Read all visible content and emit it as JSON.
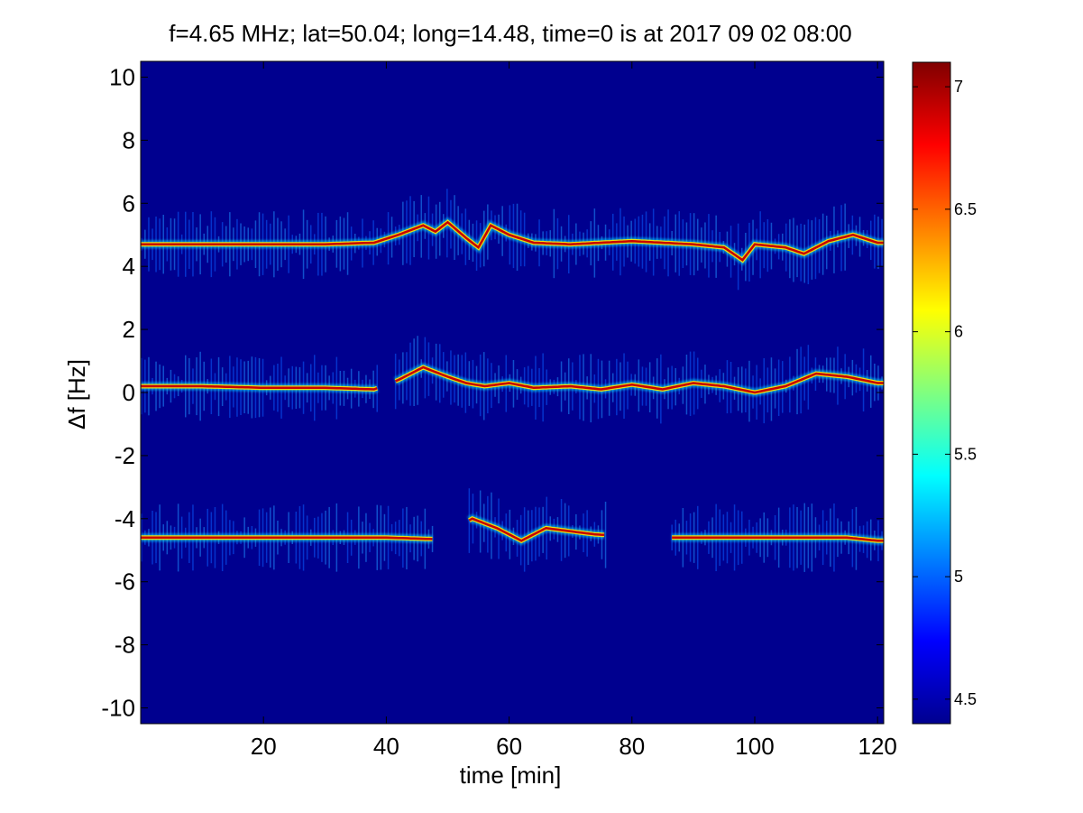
{
  "chart_data": {
    "type": "heatmap",
    "title": "f=4.65 MHz;  lat=50.04; long=14.48, time=0 is at 2017 09 02 08:00",
    "xlabel": "time [min]",
    "ylabel": "Δf [Hz]",
    "xlim": [
      0,
      121
    ],
    "ylim": [
      -10.5,
      10.5
    ],
    "x_ticks": [
      20,
      40,
      60,
      80,
      100,
      120
    ],
    "y_ticks": [
      10,
      8,
      6,
      4,
      2,
      0,
      -2,
      -4,
      -6,
      -8,
      -10
    ],
    "colorbar": {
      "range": [
        4.4,
        7.1
      ],
      "ticks": [
        7,
        6.5,
        6,
        5.5,
        5,
        4.5
      ],
      "colormap": "jet"
    },
    "background_value": 4.4,
    "traces": [
      {
        "name": "upper echo (~+4.7 Hz)",
        "points": [
          [
            0,
            4.7
          ],
          [
            10,
            4.7
          ],
          [
            20,
            4.7
          ],
          [
            30,
            4.7
          ],
          [
            38,
            4.75
          ],
          [
            42,
            5.0
          ],
          [
            46,
            5.3
          ],
          [
            48,
            5.1
          ],
          [
            50,
            5.4
          ],
          [
            53,
            4.9
          ],
          [
            55,
            4.6
          ],
          [
            57,
            5.3
          ],
          [
            60,
            5.0
          ],
          [
            64,
            4.75
          ],
          [
            70,
            4.7
          ],
          [
            80,
            4.8
          ],
          [
            90,
            4.7
          ],
          [
            95,
            4.6
          ],
          [
            98,
            4.2
          ],
          [
            100,
            4.7
          ],
          [
            105,
            4.6
          ],
          [
            108,
            4.4
          ],
          [
            112,
            4.8
          ],
          [
            116,
            5.0
          ],
          [
            120,
            4.75
          ]
        ]
      },
      {
        "name": "carrier (~0 Hz)",
        "points": [
          [
            0,
            0.2
          ],
          [
            10,
            0.2
          ],
          [
            20,
            0.15
          ],
          [
            30,
            0.15
          ],
          [
            38,
            0.1
          ],
          [
            42,
            0.4
          ],
          [
            46,
            0.8
          ],
          [
            50,
            0.5
          ],
          [
            53,
            0.3
          ],
          [
            56,
            0.2
          ],
          [
            60,
            0.3
          ],
          [
            64,
            0.15
          ],
          [
            70,
            0.2
          ],
          [
            75,
            0.1
          ],
          [
            80,
            0.25
          ],
          [
            85,
            0.1
          ],
          [
            90,
            0.3
          ],
          [
            95,
            0.2
          ],
          [
            100,
            0.0
          ],
          [
            105,
            0.2
          ],
          [
            110,
            0.6
          ],
          [
            115,
            0.5
          ],
          [
            120,
            0.3
          ]
        ]
      },
      {
        "name": "lower echo (~-4.6 Hz)",
        "points": [
          [
            0,
            -4.6
          ],
          [
            10,
            -4.6
          ],
          [
            20,
            -4.6
          ],
          [
            30,
            -4.6
          ],
          [
            40,
            -4.6
          ],
          [
            48,
            -4.65
          ],
          [
            54,
            -4.0
          ],
          [
            58,
            -4.3
          ],
          [
            62,
            -4.7
          ],
          [
            66,
            -4.3
          ],
          [
            70,
            -4.4
          ],
          [
            74,
            -4.5
          ],
          [
            86,
            -4.6
          ],
          [
            95,
            -4.6
          ],
          [
            105,
            -4.6
          ],
          [
            115,
            -4.6
          ],
          [
            120,
            -4.7
          ]
        ]
      }
    ],
    "gaps": [
      {
        "trace": "carrier (~0 Hz)",
        "x_range": [
          39,
          41
        ]
      },
      {
        "trace": "lower echo (~-4.6 Hz)",
        "x_range": [
          48,
          53
        ]
      },
      {
        "trace": "lower echo (~-4.6 Hz)",
        "x_range": [
          76,
          86
        ]
      }
    ]
  }
}
